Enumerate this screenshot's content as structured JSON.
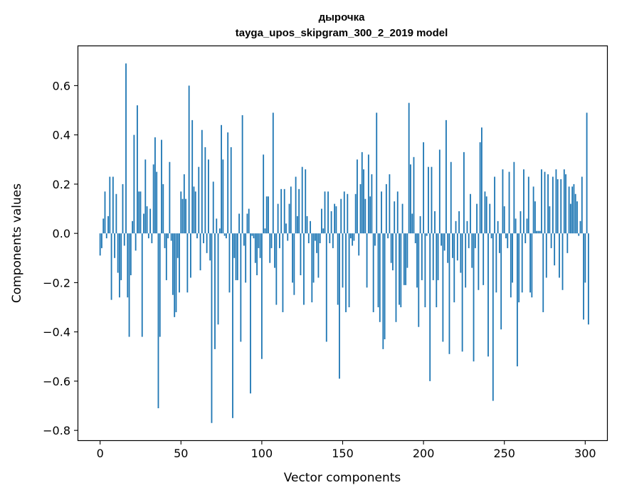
{
  "chart_data": {
    "type": "bar",
    "title": "дырочка",
    "subtitle": "tayga_upos_skipgram_300_2_2019 model",
    "xlabel": "Vector components",
    "ylabel": "Components values",
    "xlim": [
      -13.5,
      313.5
    ],
    "ylim": [
      -0.84,
      0.76
    ],
    "xticks": [
      0,
      50,
      100,
      150,
      200,
      250,
      300
    ],
    "yticks": [
      -0.8,
      -0.6,
      -0.4,
      -0.2,
      0.0,
      0.2,
      0.4,
      0.6
    ],
    "xtick_labels": [
      "0",
      "50",
      "100",
      "150",
      "200",
      "250",
      "300"
    ],
    "ytick_labels": [
      "−0.8",
      "−0.6",
      "−0.4",
      "−0.2",
      "0.0",
      "0.2",
      "0.4",
      "0.6"
    ],
    "bar_color": "#1f77b4",
    "grid": false,
    "values": [
      -0.09,
      -0.06,
      0.06,
      0.17,
      -0.02,
      0.07,
      0.23,
      -0.27,
      0.23,
      -0.1,
      0.16,
      -0.16,
      -0.26,
      -0.19,
      0.2,
      -0.05,
      0.69,
      -0.26,
      -0.42,
      -0.17,
      0.05,
      0.4,
      -0.07,
      0.52,
      0.17,
      0.17,
      -0.42,
      0.08,
      0.3,
      0.11,
      -0.02,
      0.1,
      -0.04,
      0.28,
      0.39,
      0.25,
      -0.71,
      -0.42,
      0.38,
      0.2,
      -0.06,
      -0.19,
      -0.02,
      0.29,
      -0.03,
      -0.25,
      -0.34,
      -0.32,
      -0.1,
      -0.24,
      0.17,
      0.14,
      0.24,
      0.14,
      -0.24,
      0.6,
      -0.18,
      0.46,
      0.19,
      0.17,
      -0.02,
      0.27,
      -0.15,
      0.42,
      -0.04,
      0.35,
      -0.08,
      0.3,
      -0.11,
      -0.77,
      0.21,
      -0.47,
      0.06,
      -0.37,
      0.02,
      0.44,
      0.3,
      -0.01,
      -0.02,
      0.41,
      -0.24,
      0.35,
      -0.75,
      -0.1,
      -0.19,
      -0.19,
      0.08,
      -0.44,
      0.48,
      -0.05,
      -0.2,
      0.08,
      0.1,
      -0.65,
      -0.01,
      -0.02,
      -0.12,
      -0.17,
      -0.06,
      -0.1,
      -0.51,
      0.32,
      0.02,
      0.15,
      0.15,
      -0.12,
      -0.06,
      0.49,
      -0.14,
      -0.29,
      0.12,
      -0.06,
      0.18,
      -0.32,
      0.18,
      0.04,
      -0.03,
      0.12,
      0.19,
      -0.2,
      -0.25,
      0.23,
      0.07,
      0.18,
      -0.17,
      0.27,
      -0.29,
      0.26,
      0.07,
      -0.04,
      0.05,
      -0.28,
      -0.2,
      -0.03,
      -0.08,
      -0.18,
      -0.04,
      0.1,
      0.02,
      0.17,
      -0.44,
      0.17,
      -0.04,
      0.09,
      -0.06,
      0.12,
      0.11,
      -0.29,
      -0.59,
      0.14,
      -0.22,
      0.17,
      -0.32,
      0.16,
      -0.3,
      -0.02,
      -0.05,
      -0.03,
      0.16,
      0.3,
      -0.09,
      0.2,
      0.33,
      0.26,
      0.14,
      -0.22,
      0.32,
      0.15,
      0.24,
      -0.32,
      -0.05,
      0.49,
      -0.3,
      -0.36,
      0.17,
      -0.47,
      -0.43,
      0.2,
      -0.02,
      0.24,
      -0.12,
      -0.15,
      0.13,
      -0.36,
      0.17,
      -0.29,
      -0.3,
      0.12,
      -0.21,
      -0.21,
      -0.14,
      0.53,
      0.28,
      0.08,
      0.31,
      -0.04,
      -0.22,
      -0.38,
      0.07,
      -0.19,
      0.37,
      -0.3,
      -0.01,
      0.27,
      -0.6,
      0.27,
      -0.19,
      0.09,
      -0.3,
      -0.19,
      0.34,
      -0.05,
      -0.44,
      -0.07,
      0.46,
      -0.12,
      -0.49,
      0.29,
      -0.1,
      -0.28,
      0.05,
      -0.11,
      0.09,
      -0.16,
      -0.48,
      0.33,
      -0.22,
      0.05,
      -0.06,
      0.16,
      -0.14,
      -0.52,
      -0.06,
      0.12,
      -0.23,
      0.37,
      0.43,
      -0.21,
      0.17,
      0.15,
      -0.5,
      0.12,
      -0.02,
      -0.68,
      0.23,
      -0.24,
      0.05,
      -0.08,
      -0.39,
      0.26,
      0.11,
      -0.02,
      -0.06,
      0.25,
      -0.26,
      -0.2,
      0.29,
      0.06,
      -0.54,
      -0.28,
      0.09,
      -0.24,
      0.26,
      -0.04,
      0.06,
      0.23,
      -0.24,
      -0.26,
      0.19,
      0.13,
      0.01,
      0.01,
      0.01,
      0.26,
      -0.32,
      0.25,
      -0.18,
      0.24,
      0.11,
      -0.06,
      0.23,
      -0.13,
      0.26,
      0.22,
      -0.18,
      0.22,
      -0.23,
      0.26,
      0.24,
      -0.08,
      0.19,
      0.12,
      0.19,
      0.2,
      0.16,
      0.13,
      -0.01,
      0.05,
      0.23,
      -0.35,
      -0.2,
      0.49,
      -0.37
    ]
  }
}
